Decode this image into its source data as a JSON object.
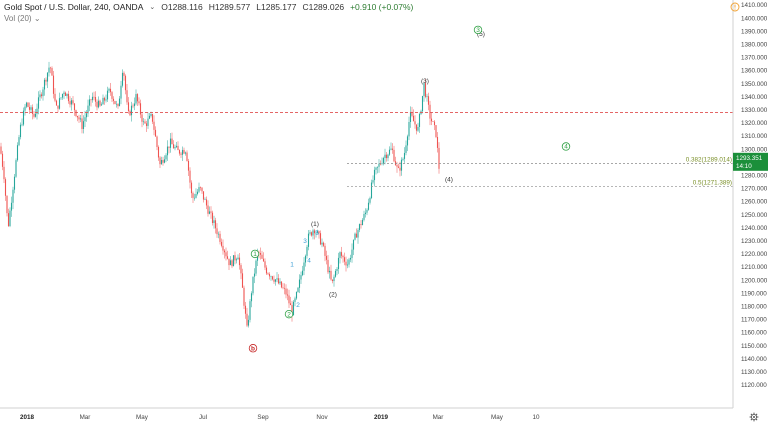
{
  "header": {
    "title": "Gold Spot / U.S. Dollar, 240, OANDA",
    "chevron": "⌄",
    "open": "O1288.116",
    "high": "H1289.577",
    "low": "L1285.177",
    "close": "C1289.026",
    "change": "+0.910 (+0.07%)",
    "volume_label": "Vol (20)",
    "volume_chevron": "⌄"
  },
  "icons": {
    "alert": "alert-icon",
    "settings": "gear-icon"
  },
  "colors": {
    "up": "#26a69a",
    "down": "#ef5350",
    "resistance": "#e05050",
    "fib": "#8a8a8a",
    "price_tag": "#1b8f3a",
    "wave_green": "#2ea043",
    "wave_red": "#c62828"
  },
  "chart_data": {
    "type": "candlestick",
    "y_axis": {
      "min": 1110,
      "max": 1410,
      "step": 10,
      "side": "right"
    },
    "x_ticks": [
      "2018",
      "Mar",
      "May",
      "Jul",
      "Sep",
      "Nov",
      "2019",
      "Mar",
      "May",
      "10"
    ],
    "x_ticks_bold": [
      "2018",
      "2019"
    ],
    "price_path": [
      [
        0,
        1302
      ],
      [
        4,
        1280
      ],
      [
        8,
        1240
      ],
      [
        14,
        1278
      ],
      [
        20,
        1315
      ],
      [
        26,
        1335
      ],
      [
        34,
        1325
      ],
      [
        42,
        1345
      ],
      [
        50,
        1365
      ],
      [
        56,
        1330
      ],
      [
        64,
        1345
      ],
      [
        72,
        1335
      ],
      [
        82,
        1318
      ],
      [
        92,
        1340
      ],
      [
        100,
        1332
      ],
      [
        110,
        1345
      ],
      [
        118,
        1330
      ],
      [
        123,
        1365
      ],
      [
        128,
        1325
      ],
      [
        136,
        1340
      ],
      [
        144,
        1318
      ],
      [
        152,
        1325
      ],
      [
        160,
        1288
      ],
      [
        170,
        1305
      ],
      [
        178,
        1298
      ],
      [
        186,
        1300
      ],
      [
        192,
        1262
      ],
      [
        200,
        1270
      ],
      [
        210,
        1250
      ],
      [
        220,
        1232
      ],
      [
        230,
        1212
      ],
      [
        238,
        1220
      ],
      [
        243,
        1190
      ],
      [
        247,
        1162
      ],
      [
        252,
        1195
      ],
      [
        258,
        1222
      ],
      [
        266,
        1208
      ],
      [
        276,
        1200
      ],
      [
        286,
        1190
      ],
      [
        292,
        1176
      ],
      [
        298,
        1192
      ],
      [
        303,
        1212
      ],
      [
        308,
        1232
      ],
      [
        314,
        1240
      ],
      [
        322,
        1228
      ],
      [
        332,
        1196
      ],
      [
        340,
        1220
      ],
      [
        348,
        1212
      ],
      [
        356,
        1235
      ],
      [
        366,
        1252
      ],
      [
        374,
        1280
      ],
      [
        384,
        1295
      ],
      [
        392,
        1300
      ],
      [
        398,
        1282
      ],
      [
        404,
        1295
      ],
      [
        410,
        1326
      ],
      [
        418,
        1315
      ],
      [
        424,
        1349
      ],
      [
        430,
        1325
      ],
      [
        436,
        1312
      ],
      [
        439,
        1286
      ]
    ],
    "last_price": "1293.351",
    "countdown": "14:10",
    "resistance_price": 1328,
    "fib_levels": [
      {
        "price": 1289.014,
        "label": "0.382(1289.014)",
        "from_x": 347
      },
      {
        "price": 1271.389,
        "label": "0.5(1271.389)",
        "from_x": 347
      }
    ],
    "wave_labels": [
      {
        "text": "(3)",
        "x": 425,
        "price": 1352,
        "color": "#333",
        "circled": false
      },
      {
        "text": "(4)",
        "x": 449,
        "price": 1277,
        "color": "#333",
        "circled": false
      },
      {
        "text": "(5)",
        "x": 481,
        "price": 1388,
        "color": "#333",
        "circled": false
      },
      {
        "text": "3",
        "x": 478,
        "price": 1391,
        "color": "#2ea043",
        "circled": true
      },
      {
        "text": "4",
        "x": 566,
        "price": 1302,
        "color": "#2ea043",
        "circled": true
      },
      {
        "text": "(1)",
        "x": 315,
        "price": 1243,
        "color": "#333",
        "circled": false
      },
      {
        "text": "(2)",
        "x": 333,
        "price": 1189,
        "color": "#333",
        "circled": false
      },
      {
        "text": "1",
        "x": 255,
        "price": 1220,
        "color": "#2ea043",
        "circled": true
      },
      {
        "text": "2",
        "x": 289,
        "price": 1174,
        "color": "#2ea043",
        "circled": true
      },
      {
        "text": "b",
        "x": 253,
        "price": 1148,
        "color": "#c62828",
        "circled": true
      },
      {
        "text": "1",
        "x": 292,
        "price": 1212,
        "color": "#3b9fd6",
        "circled": false
      },
      {
        "text": "2",
        "x": 298,
        "price": 1181,
        "color": "#3b9fd6",
        "circled": false
      },
      {
        "text": "3",
        "x": 305,
        "price": 1230,
        "color": "#3b9fd6",
        "circled": false
      },
      {
        "text": "4",
        "x": 309,
        "price": 1215,
        "color": "#3b9fd6",
        "circled": false
      },
      {
        "text": "5",
        "x": 317,
        "price": 1236,
        "color": "#3b9fd6",
        "circled": false
      }
    ]
  }
}
